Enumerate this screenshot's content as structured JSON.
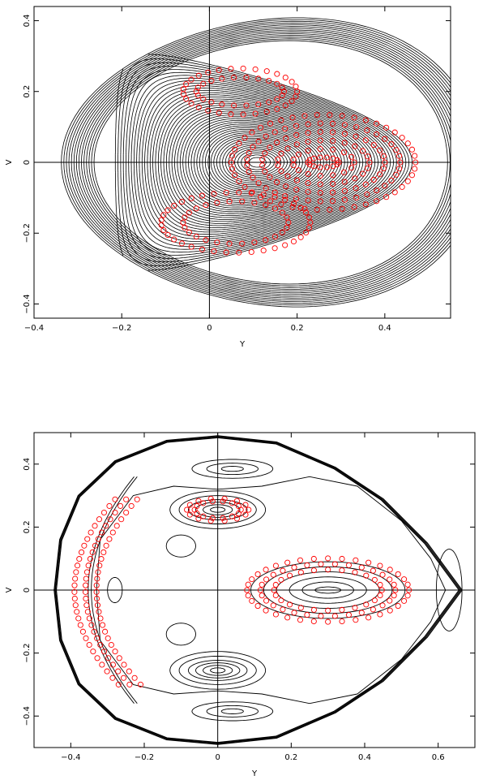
{
  "chart_data": [
    {
      "type": "contour",
      "xlabel": "Y",
      "ylabel": "V",
      "xlim": [
        -0.4,
        0.55
      ],
      "ylim": [
        -0.44,
        0.44
      ],
      "xticks": [
        -0.4,
        -0.2,
        0,
        0.2,
        0.4
      ],
      "yticks": [
        -0.4,
        -0.2,
        0,
        0.2,
        0.4
      ],
      "tick_labels_x": [
        "−0.4",
        "−0.2",
        "0",
        "0.2",
        "0.4"
      ],
      "tick_labels_y": [
        "−0.4",
        "−0.2",
        "0",
        "0.2",
        "0.4"
      ],
      "colors": {
        "contours": "#000000",
        "markers": "#ff0000"
      },
      "potential": {
        "a": 0.8,
        "b": 0.56,
        "c": 0.45,
        "x_shift": 0.11,
        "x_shift_coef": 0.9,
        "v_scale": 1.4,
        "rho_max": 0.43
      },
      "marker_sets": [
        {
          "cx": 0.26,
          "cy": 0.0,
          "rx": [
            0.035,
            0.07,
            0.105,
            0.14,
            0.175,
            0.21
          ],
          "ry": [
            0.014,
            0.038,
            0.062,
            0.086,
            0.11,
            0.134
          ]
        },
        {
          "cx": 0.07,
          "cy": 0.2,
          "rx": [
            0.1,
            0.13
          ],
          "ry": [
            0.04,
            0.065
          ]
        },
        {
          "cx": 0.06,
          "cy": -0.17,
          "rx": [
            0.12,
            0.17
          ],
          "ry": [
            0.06,
            0.085
          ]
        }
      ]
    },
    {
      "type": "contour",
      "xlabel": "Y",
      "ylabel": "V",
      "xlim": [
        -0.5,
        0.7
      ],
      "ylim": [
        -0.5,
        0.5
      ],
      "xticks": [
        -0.4,
        -0.2,
        0,
        0.2,
        0.4,
        0.6
      ],
      "yticks": [
        -0.4,
        -0.2,
        0,
        0.2,
        0.4
      ],
      "tick_labels_x": [
        "−0.4",
        "−0.2",
        "0",
        "0.2",
        "0.4",
        "0.6"
      ],
      "tick_labels_y": [
        "−0.4",
        "−0.2",
        "0",
        "0.2",
        "0.4"
      ],
      "colors": {
        "contours": "#000000",
        "markers": "#ff0000"
      },
      "boundary": [
        [
          -0.445,
          0
        ],
        [
          -0.43,
          0.16
        ],
        [
          -0.38,
          0.3
        ],
        [
          -0.28,
          0.41
        ],
        [
          -0.14,
          0.475
        ],
        [
          0,
          0.49
        ],
        [
          0.16,
          0.47
        ],
        [
          0.32,
          0.39
        ],
        [
          0.45,
          0.29
        ],
        [
          0.57,
          0.15
        ],
        [
          0.665,
          0
        ]
      ],
      "islands": [
        {
          "cx": 0.3,
          "cy": 0.0,
          "rx": [
            0.035,
            0.07,
            0.105,
            0.14,
            0.175,
            0.21
          ],
          "ry": [
            0.01,
            0.026,
            0.042,
            0.058,
            0.074,
            0.09
          ],
          "markers": [
            3,
            4,
            5
          ]
        },
        {
          "cx": 0.0,
          "cy": 0.255,
          "rx": [
            0.02,
            0.04,
            0.06,
            0.08,
            0.105,
            0.13
          ],
          "ry": [
            0.008,
            0.016,
            0.024,
            0.032,
            0.045,
            0.06
          ],
          "markers": [
            2,
            3
          ]
        },
        {
          "cx": 0.0,
          "cy": -0.255,
          "rx": [
            0.02,
            0.04,
            0.06,
            0.08,
            0.105,
            0.13
          ],
          "ry": [
            0.008,
            0.016,
            0.024,
            0.032,
            0.045,
            0.06
          ],
          "markers": []
        },
        {
          "cx": 0.04,
          "cy": 0.385,
          "rx": [
            0.03,
            0.07,
            0.11
          ],
          "ry": [
            0.008,
            0.018,
            0.03
          ],
          "markers": []
        },
        {
          "cx": 0.04,
          "cy": -0.385,
          "rx": [
            0.03,
            0.07,
            0.11
          ],
          "ry": [
            0.008,
            0.018,
            0.03
          ],
          "markers": []
        },
        {
          "cx": -0.1,
          "cy": 0.14,
          "rx": [
            0.04
          ],
          "ry": [
            0.035
          ],
          "markers": []
        },
        {
          "cx": -0.1,
          "cy": -0.14,
          "rx": [
            0.04
          ],
          "ry": [
            0.035
          ],
          "markers": []
        },
        {
          "cx": -0.28,
          "cy": 0.0,
          "rx": [
            0.02
          ],
          "ry": [
            0.04
          ],
          "markers": []
        }
      ],
      "crescent_markers": [
        {
          "x": -0.39,
          "y0": 0.0,
          "dx": 0.1,
          "ry": 0.3,
          "rx_list": [
            0.0,
            0.03,
            0.06
          ]
        }
      ]
    }
  ]
}
